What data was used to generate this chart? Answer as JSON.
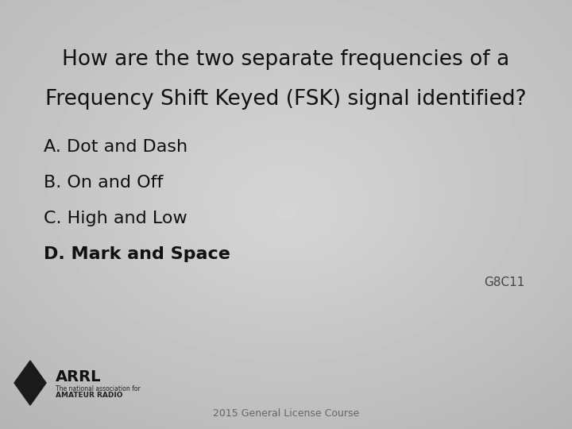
{
  "title_line1": "How are the two separate frequencies of a",
  "title_line2": "Frequency Shift Keyed (FSK) signal identified?",
  "options": [
    {
      "label": "A. Dot and Dash",
      "bold": false
    },
    {
      "label": "B. On and Off",
      "bold": false
    },
    {
      "label": "C. High and Low",
      "bold": false
    },
    {
      "label": "D. Mark and Space",
      "bold": true
    }
  ],
  "question_id": "G8C11",
  "footer": "2015 General License Course",
  "title_fontsize": 19,
  "option_fontsize": 16,
  "question_id_fontsize": 11,
  "footer_fontsize": 9,
  "text_color": "#111111",
  "qid_color": "#444444",
  "footer_color": "#666666"
}
